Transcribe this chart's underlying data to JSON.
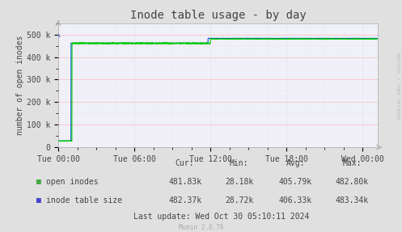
{
  "title": "Inode table usage - by day",
  "ylabel": "number of open inodes",
  "bg_color": "#e0e0e0",
  "plot_bg_color": "#f0f0f8",
  "grid_color_h": "#ffaaaa",
  "grid_color_v": "#ccccdd",
  "x_ticks_labels": [
    "Tue 00:00",
    "Tue 06:00",
    "Tue 12:00",
    "Tue 18:00",
    "Wed 00:00"
  ],
  "x_ticks": [
    0.0,
    0.25,
    0.5,
    0.75,
    1.0
  ],
  "y_ticks": [
    0,
    100000,
    200000,
    300000,
    400000,
    500000
  ],
  "y_tick_labels": [
    "0",
    "100 k",
    "200 k",
    "300 k",
    "400 k",
    "500 k"
  ],
  "ylim": [
    0,
    550000
  ],
  "xlim": [
    0,
    1.05
  ],
  "open_inodes_color": "#00cc00",
  "inode_table_color": "#0055cc",
  "legend_items": [
    {
      "label": "open inodes",
      "color": "#44aa44"
    },
    {
      "label": "inode table size",
      "color": "#4444cc"
    }
  ],
  "stats_headers": [
    "Cur:",
    "Min:",
    "Avg:",
    "Max:"
  ],
  "stats_open_inodes": [
    "481.83k",
    "28.18k",
    "405.79k",
    "482.80k"
  ],
  "stats_inode_table": [
    "482.37k",
    "28.72k",
    "406.33k",
    "483.34k"
  ],
  "last_update": "Last update: Wed Oct 30 05:10:11 2024",
  "munin_version": "Munin 2.0.76",
  "rrdtool_label": "RRDTOOL / TOBI OETIKER",
  "title_fontsize": 10,
  "axis_label_fontsize": 7,
  "tick_fontsize": 7,
  "legend_fontsize": 7,
  "stats_fontsize": 7
}
